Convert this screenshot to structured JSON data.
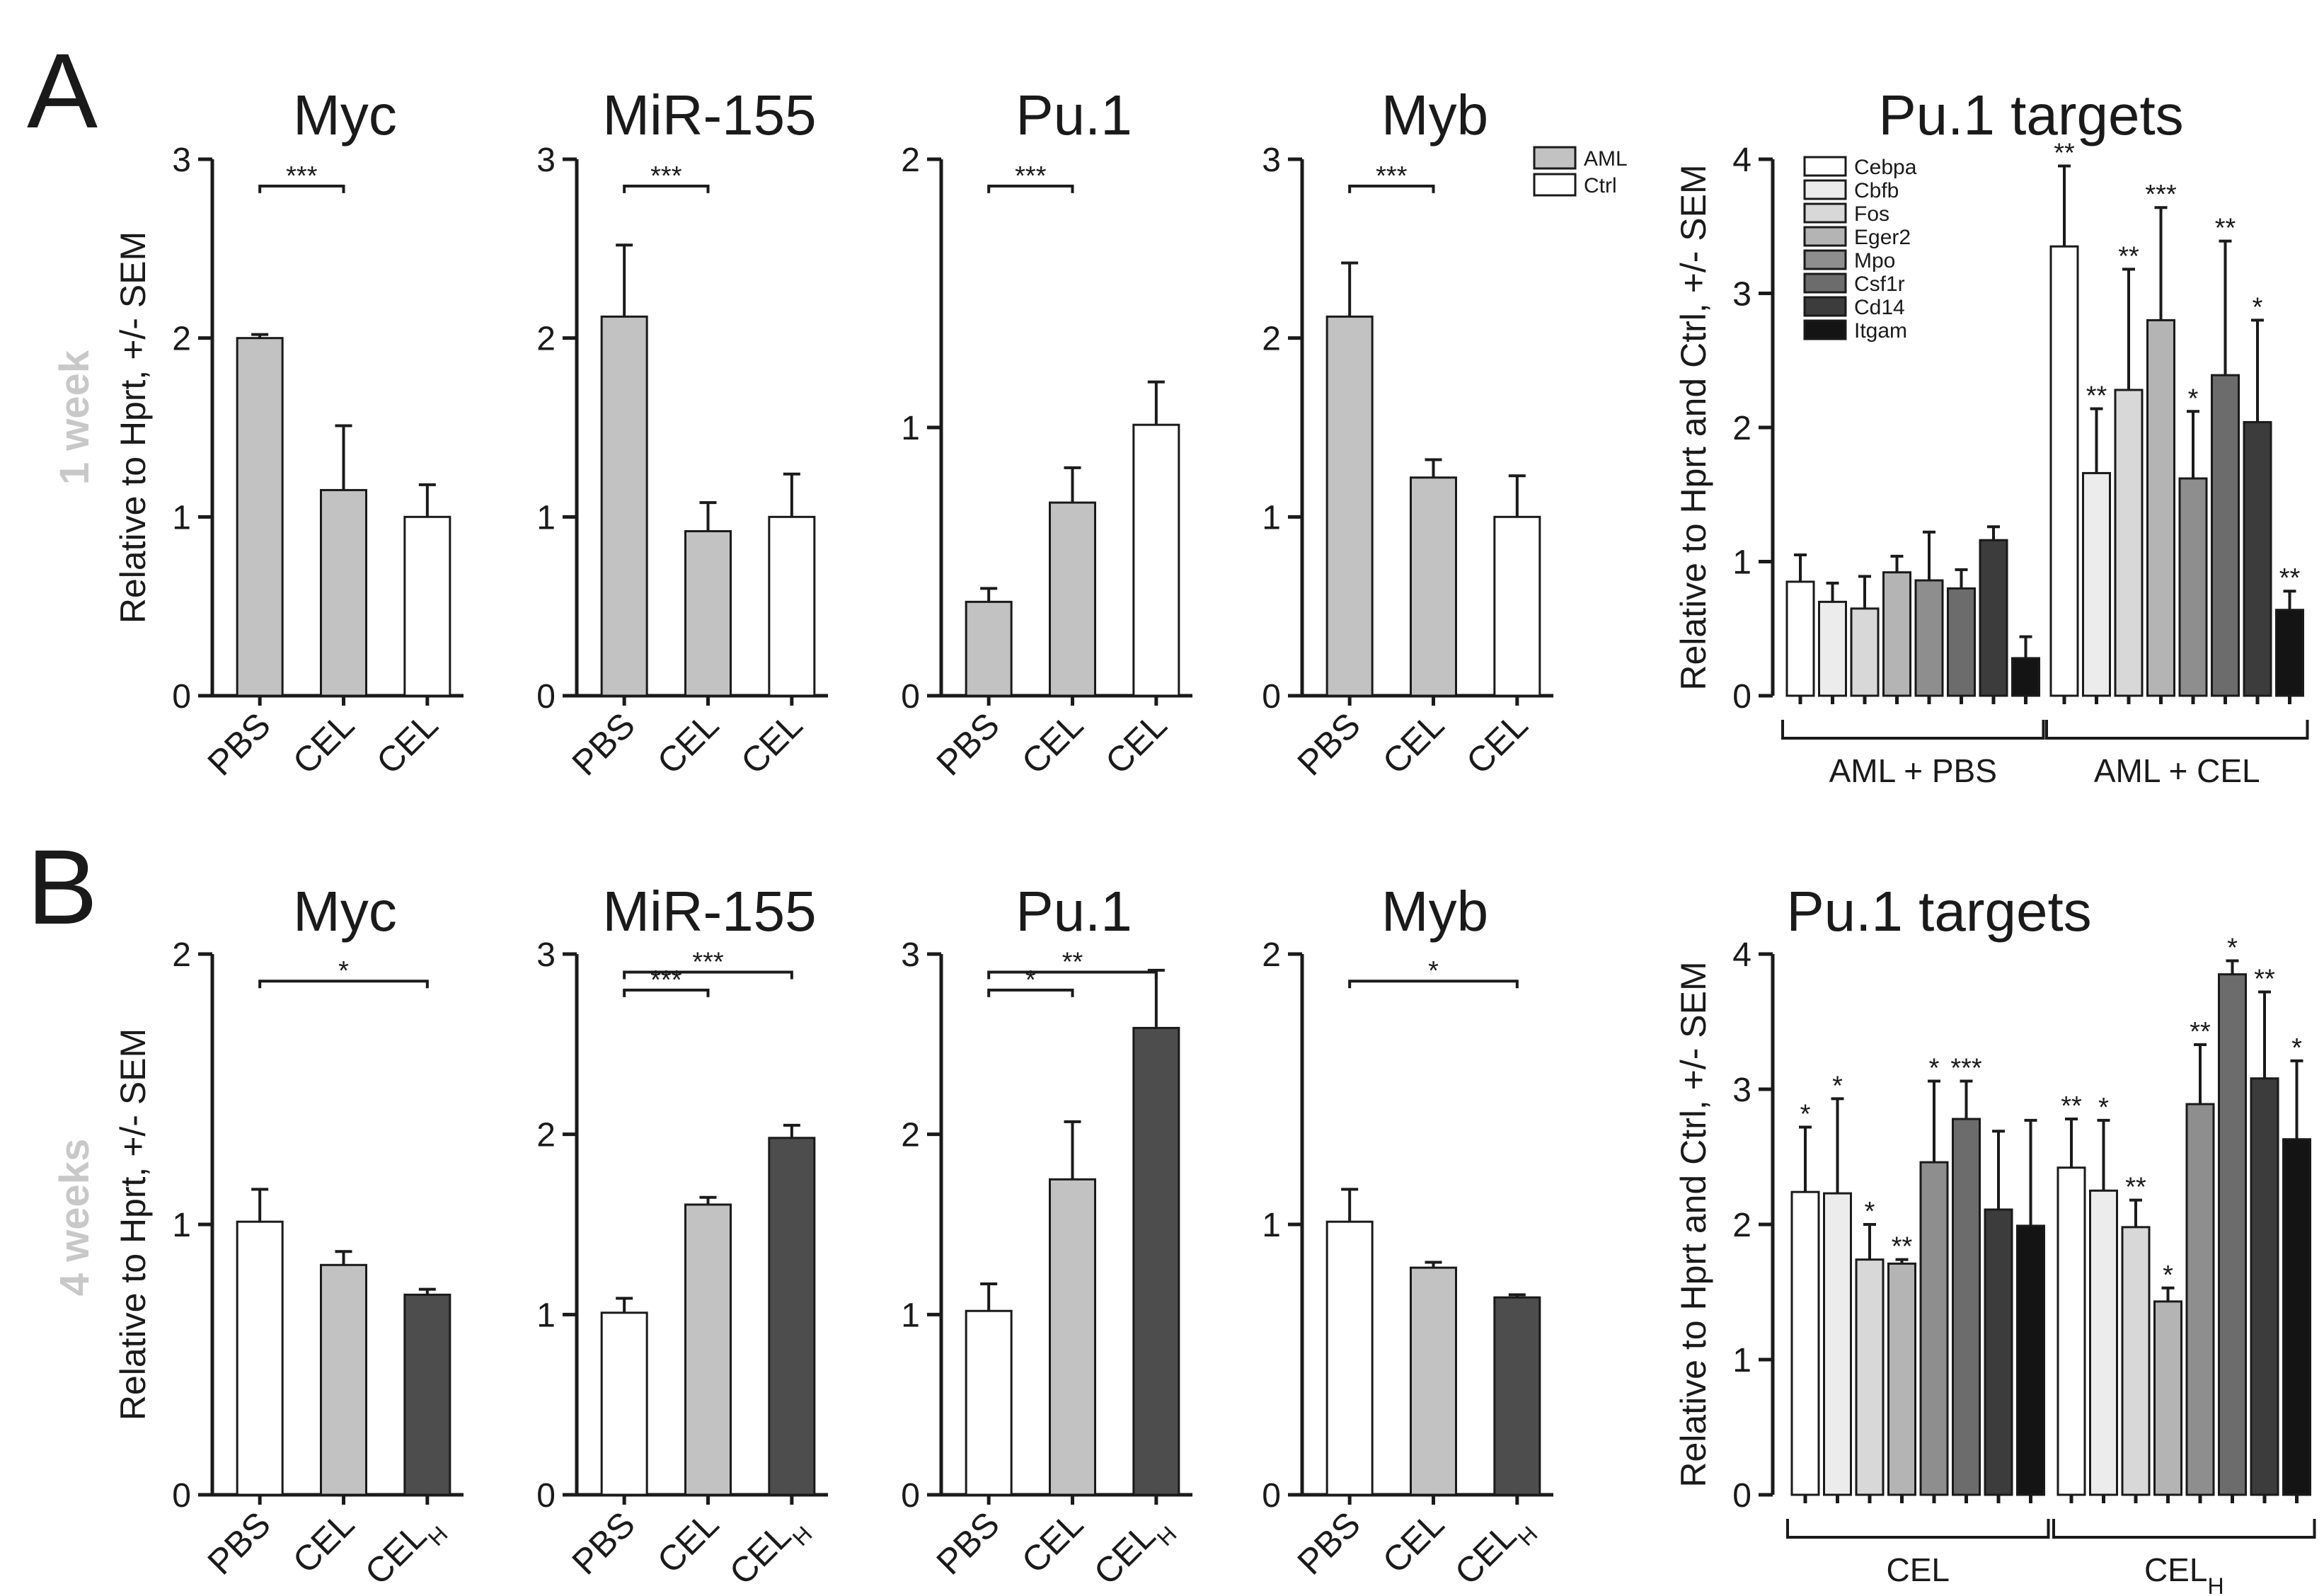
{
  "panel_letters": [
    "A",
    "B"
  ],
  "row_labels": [
    "1 week",
    "4 weeks"
  ],
  "colors": {
    "AML": "#c2c2c2",
    "Ctrl": "#ffffff",
    "CEL_H": "#4d4d4d",
    "targets": {
      "Cebpa": "#ffffff",
      "Cbfb": "#ececec",
      "Fos": "#d8d8d8",
      "Eger2": "#b4b4b4",
      "Mpo": "#8e8e8e",
      "Csf1r": "#6c6c6c",
      "Cd14": "#3c3c3c",
      "Itgam": "#141414"
    }
  },
  "legend_A": [
    {
      "label": "AML",
      "color": "#c2c2c2"
    },
    {
      "label": "Ctrl",
      "color": "#ffffff"
    }
  ],
  "chart_data": [
    {
      "id": "A-myc",
      "panel": "A",
      "type": "bar",
      "title": "Myc",
      "ylabel": "Relative to Hprt, +/- SEM",
      "ylim": [
        0,
        3
      ],
      "yticks": [
        0,
        1,
        2,
        3
      ],
      "categories": [
        "PBS",
        "CEL",
        "CEL"
      ],
      "values": [
        2.0,
        1.15,
        1.0
      ],
      "errors": [
        0.02,
        0.36,
        0.18
      ],
      "colors": [
        "#c2c2c2",
        "#c2c2c2",
        "#ffffff"
      ],
      "significance": [
        {
          "from": 0,
          "to": 1,
          "label": "***",
          "y": 2.85
        }
      ]
    },
    {
      "id": "A-mir155",
      "panel": "A",
      "type": "bar",
      "title": "MiR-155",
      "ylabel": "",
      "ylim": [
        0,
        3
      ],
      "yticks": [
        0,
        1,
        2,
        3
      ],
      "categories": [
        "PBS",
        "CEL",
        "CEL"
      ],
      "values": [
        2.12,
        0.92,
        1.0
      ],
      "errors": [
        0.4,
        0.16,
        0.24
      ],
      "colors": [
        "#c2c2c2",
        "#c2c2c2",
        "#ffffff"
      ],
      "significance": [
        {
          "from": 0,
          "to": 1,
          "label": "***",
          "y": 2.85
        }
      ]
    },
    {
      "id": "A-pu1",
      "panel": "A",
      "type": "bar",
      "title": "Pu.1",
      "ylabel": "",
      "ylim": [
        0,
        2
      ],
      "yticks": [
        0,
        1,
        2
      ],
      "categories": [
        "PBS",
        "CEL",
        "CEL"
      ],
      "values": [
        0.35,
        0.72,
        1.01
      ],
      "errors": [
        0.05,
        0.13,
        0.16
      ],
      "colors": [
        "#c2c2c2",
        "#c2c2c2",
        "#ffffff"
      ],
      "significance": [
        {
          "from": 0,
          "to": 1,
          "label": "***",
          "y": 1.9
        }
      ]
    },
    {
      "id": "A-myb",
      "panel": "A",
      "type": "bar",
      "title": "Myb",
      "ylabel": "",
      "ylim": [
        0,
        3
      ],
      "yticks": [
        0,
        1,
        2,
        3
      ],
      "categories": [
        "PBS",
        "CEL",
        "CEL"
      ],
      "values": [
        2.12,
        1.22,
        1.0
      ],
      "errors": [
        0.3,
        0.1,
        0.23
      ],
      "colors": [
        "#c2c2c2",
        "#c2c2c2",
        "#ffffff"
      ],
      "significance": [
        {
          "from": 0,
          "to": 1,
          "label": "***",
          "y": 2.85
        }
      ]
    },
    {
      "id": "A-targets",
      "panel": "A",
      "type": "bar",
      "title": "Pu.1 targets",
      "ylabel": "Relative to Hprt and Ctrl, +/- SEM",
      "ylim": [
        0,
        4
      ],
      "yticks": [
        0,
        1,
        2,
        3,
        4
      ],
      "categories": [
        "Cebpa",
        "Cbfb",
        "Fos",
        "Eger2",
        "Mpo",
        "Csf1r",
        "Cd14",
        "Itgam"
      ],
      "groups": [
        "AML + PBS",
        "AML + CEL"
      ],
      "series": [
        {
          "name": "AML + PBS",
          "values": [
            0.85,
            0.7,
            0.65,
            0.92,
            0.86,
            0.8,
            1.16,
            0.28
          ],
          "errors": [
            0.2,
            0.14,
            0.24,
            0.12,
            0.36,
            0.14,
            0.1,
            0.16
          ],
          "labels": [
            "",
            "",
            "",
            "",
            "",
            "",
            "",
            ""
          ]
        },
        {
          "name": "AML + CEL",
          "values": [
            3.35,
            1.66,
            2.28,
            2.8,
            1.62,
            2.39,
            2.04,
            0.64
          ],
          "errors": [
            0.6,
            0.48,
            0.9,
            0.84,
            0.5,
            1.0,
            0.76,
            0.14
          ],
          "labels": [
            "**",
            "**",
            "**",
            "***",
            "*",
            "**",
            "*",
            "**"
          ]
        }
      ]
    },
    {
      "id": "B-myc",
      "panel": "B",
      "type": "bar",
      "title": "Myc",
      "ylabel": "Relative to Hprt, +/- SEM",
      "ylim": [
        0,
        2
      ],
      "yticks": [
        0,
        1,
        2
      ],
      "categories": [
        "PBS",
        "CEL",
        "CEL_H"
      ],
      "values": [
        1.01,
        0.85,
        0.74
      ],
      "errors": [
        0.12,
        0.05,
        0.02
      ],
      "colors": [
        "#ffffff",
        "#c2c2c2",
        "#4d4d4d"
      ],
      "significance": [
        {
          "from": 0,
          "to": 2,
          "label": "*",
          "y": 1.9
        }
      ]
    },
    {
      "id": "B-mir155",
      "panel": "B",
      "type": "bar",
      "title": "MiR-155",
      "ylabel": "",
      "ylim": [
        0,
        3
      ],
      "yticks": [
        0,
        1,
        2,
        3
      ],
      "categories": [
        "PBS",
        "CEL",
        "CEL_H"
      ],
      "values": [
        1.01,
        1.61,
        1.98
      ],
      "errors": [
        0.08,
        0.04,
        0.07
      ],
      "colors": [
        "#ffffff",
        "#c2c2c2",
        "#4d4d4d"
      ],
      "significance": [
        {
          "from": 0,
          "to": 1,
          "label": "***",
          "y": 2.8
        },
        {
          "from": 0,
          "to": 2,
          "label": "***",
          "y": 2.9
        }
      ]
    },
    {
      "id": "B-pu1",
      "panel": "B",
      "type": "bar",
      "title": "Pu.1",
      "ylabel": "",
      "ylim": [
        0,
        3
      ],
      "yticks": [
        0,
        1,
        2,
        3
      ],
      "categories": [
        "PBS",
        "CEL",
        "CEL_H"
      ],
      "values": [
        1.02,
        1.75,
        2.59
      ],
      "errors": [
        0.15,
        0.32,
        0.32
      ],
      "colors": [
        "#ffffff",
        "#c2c2c2",
        "#4d4d4d"
      ],
      "significance": [
        {
          "from": 0,
          "to": 1,
          "label": "*",
          "y": 2.8
        },
        {
          "from": 0,
          "to": 2,
          "label": "**",
          "y": 2.9
        }
      ]
    },
    {
      "id": "B-myb",
      "panel": "B",
      "type": "bar",
      "title": "Myb",
      "ylabel": "",
      "ylim": [
        0,
        2
      ],
      "yticks": [
        0,
        1,
        2
      ],
      "categories": [
        "PBS",
        "CEL",
        "CEL_H"
      ],
      "values": [
        1.01,
        0.84,
        0.73
      ],
      "errors": [
        0.12,
        0.02,
        0.01
      ],
      "colors": [
        "#ffffff",
        "#c2c2c2",
        "#4d4d4d"
      ],
      "significance": [
        {
          "from": 0,
          "to": 2,
          "label": "*",
          "y": 1.9
        }
      ]
    },
    {
      "id": "B-targets",
      "panel": "B",
      "type": "bar",
      "title": "Pu.1 targets",
      "ylabel": "Relative to Hprt and Ctrl, +/- SEM",
      "ylim": [
        0,
        4
      ],
      "yticks": [
        0,
        1,
        2,
        3,
        4
      ],
      "categories": [
        "Cebpa",
        "Cbfb",
        "Fos",
        "Eger2",
        "Mpo",
        "Csf1r",
        "Cd14",
        "Itgam"
      ],
      "groups": [
        "CEL",
        "CEL_H"
      ],
      "series": [
        {
          "name": "CEL",
          "values": [
            2.24,
            2.23,
            1.74,
            1.71,
            2.46,
            2.78,
            2.11,
            1.99
          ],
          "errors": [
            0.48,
            0.7,
            0.26,
            0.03,
            0.6,
            0.28,
            0.58,
            0.78
          ],
          "labels": [
            "*",
            "*",
            "*",
            "**",
            "*",
            "***",
            "",
            ""
          ]
        },
        {
          "name": "CEL_H",
          "values": [
            2.42,
            2.25,
            1.98,
            1.43,
            2.89,
            3.85,
            3.08,
            2.63
          ],
          "errors": [
            0.36,
            0.52,
            0.2,
            0.1,
            0.44,
            0.1,
            0.64,
            0.58
          ],
          "labels": [
            "**",
            "*",
            "**",
            "*",
            "**",
            "*",
            "**",
            "*"
          ]
        }
      ]
    }
  ]
}
